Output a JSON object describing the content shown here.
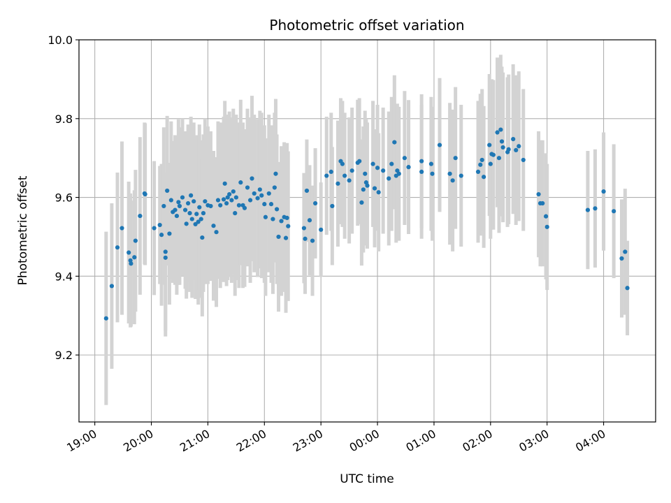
{
  "chart_data": {
    "type": "scatter",
    "title": "Photometric offset variation",
    "xlabel": "UTC time",
    "ylabel": "Photometric offset",
    "x_unit": "hours",
    "xlim": [
      -0.28,
      9.92
    ],
    "ylim": [
      9.03,
      10.0
    ],
    "x_ticks": [
      0,
      1,
      2,
      3,
      4,
      5,
      6,
      7,
      8,
      9
    ],
    "x_tick_labels": [
      "19:00",
      "20:00",
      "21:00",
      "22:00",
      "23:00",
      "00:00",
      "01:00",
      "02:00",
      "03:00",
      "04:00"
    ],
    "y_ticks": [
      9.2,
      9.4,
      9.6,
      9.8,
      10.0
    ],
    "y_tick_labels": [
      "9.2",
      "9.4",
      "9.6",
      "9.8",
      "10.0"
    ],
    "grid": true,
    "colors": {
      "points": "#1f77b4",
      "errorbars": "#d3d3d3",
      "grid": "#b0b0b0"
    },
    "series": [
      {
        "points": [
          {
            "x": 0.2,
            "y": 9.293,
            "err": 0.22
          },
          {
            "x": 0.3,
            "y": 9.375,
            "err": 0.21
          },
          {
            "x": 0.4,
            "y": 9.473,
            "err": 0.19
          },
          {
            "x": 0.48,
            "y": 9.522,
            "err": 0.22
          },
          {
            "x": 0.6,
            "y": 9.46,
            "err": 0.18
          },
          {
            "x": 0.63,
            "y": 9.44,
            "err": 0.17
          },
          {
            "x": 0.64,
            "y": 9.432,
            "err": 0.16
          },
          {
            "x": 0.7,
            "y": 9.448,
            "err": 0.17
          },
          {
            "x": 0.72,
            "y": 9.49,
            "err": 0.18
          },
          {
            "x": 0.8,
            "y": 9.553,
            "err": 0.2
          },
          {
            "x": 0.88,
            "y": 9.61,
            "err": 0.18
          },
          {
            "x": 0.89,
            "y": 9.608,
            "err": 0.18
          },
          {
            "x": 1.05,
            "y": 9.522,
            "err": 0.17
          },
          {
            "x": 1.15,
            "y": 9.53,
            "err": 0.15
          },
          {
            "x": 1.18,
            "y": 9.505,
            "err": 0.18
          },
          {
            "x": 1.22,
            "y": 9.578,
            "err": 0.2
          },
          {
            "x": 1.25,
            "y": 9.462,
            "err": 0.2
          },
          {
            "x": 1.25,
            "y": 9.447,
            "err": 0.2
          },
          {
            "x": 1.28,
            "y": 9.617,
            "err": 0.19
          },
          {
            "x": 1.32,
            "y": 9.508,
            "err": 0.18
          },
          {
            "x": 1.35,
            "y": 9.593,
            "err": 0.2
          },
          {
            "x": 1.38,
            "y": 9.563,
            "err": 0.18
          },
          {
            "x": 1.42,
            "y": 9.568,
            "err": 0.19
          },
          {
            "x": 1.45,
            "y": 9.553,
            "err": 0.2
          },
          {
            "x": 1.48,
            "y": 9.588,
            "err": 0.21
          },
          {
            "x": 1.5,
            "y": 9.578,
            "err": 0.2
          },
          {
            "x": 1.55,
            "y": 9.6,
            "err": 0.2
          },
          {
            "x": 1.6,
            "y": 9.568,
            "err": 0.2
          },
          {
            "x": 1.62,
            "y": 9.533,
            "err": 0.19
          },
          {
            "x": 1.65,
            "y": 9.585,
            "err": 0.2
          },
          {
            "x": 1.68,
            "y": 9.56,
            "err": 0.2
          },
          {
            "x": 1.7,
            "y": 9.605,
            "err": 0.2
          },
          {
            "x": 1.72,
            "y": 9.545,
            "err": 0.2
          },
          {
            "x": 1.75,
            "y": 9.59,
            "err": 0.2
          },
          {
            "x": 1.78,
            "y": 9.532,
            "err": 0.19
          },
          {
            "x": 1.8,
            "y": 9.558,
            "err": 0.2
          },
          {
            "x": 1.83,
            "y": 9.538,
            "err": 0.21
          },
          {
            "x": 1.85,
            "y": 9.575,
            "err": 0.21
          },
          {
            "x": 1.88,
            "y": 9.545,
            "err": 0.2
          },
          {
            "x": 1.9,
            "y": 9.498,
            "err": 0.2
          },
          {
            "x": 1.92,
            "y": 9.56,
            "err": 0.2
          },
          {
            "x": 1.95,
            "y": 9.59,
            "err": 0.21
          },
          {
            "x": 2.0,
            "y": 9.58,
            "err": 0.2
          },
          {
            "x": 2.05,
            "y": 9.578,
            "err": 0.19
          },
          {
            "x": 2.1,
            "y": 9.528,
            "err": 0.19
          },
          {
            "x": 2.15,
            "y": 9.512,
            "err": 0.19
          },
          {
            "x": 2.18,
            "y": 9.593,
            "err": 0.2
          },
          {
            "x": 2.22,
            "y": 9.58,
            "err": 0.21
          },
          {
            "x": 2.28,
            "y": 9.595,
            "err": 0.21
          },
          {
            "x": 2.3,
            "y": 9.635,
            "err": 0.21
          },
          {
            "x": 2.33,
            "y": 9.585,
            "err": 0.21
          },
          {
            "x": 2.35,
            "y": 9.6,
            "err": 0.21
          },
          {
            "x": 2.38,
            "y": 9.608,
            "err": 0.21
          },
          {
            "x": 2.42,
            "y": 9.593,
            "err": 0.21
          },
          {
            "x": 2.45,
            "y": 9.615,
            "err": 0.21
          },
          {
            "x": 2.48,
            "y": 9.56,
            "err": 0.21
          },
          {
            "x": 2.5,
            "y": 9.6,
            "err": 0.21
          },
          {
            "x": 2.55,
            "y": 9.58,
            "err": 0.21
          },
          {
            "x": 2.58,
            "y": 9.638,
            "err": 0.21
          },
          {
            "x": 2.62,
            "y": 9.58,
            "err": 0.21
          },
          {
            "x": 2.65,
            "y": 9.573,
            "err": 0.2
          },
          {
            "x": 2.7,
            "y": 9.625,
            "err": 0.2
          },
          {
            "x": 2.75,
            "y": 9.593,
            "err": 0.21
          },
          {
            "x": 2.78,
            "y": 9.648,
            "err": 0.21
          },
          {
            "x": 2.82,
            "y": 9.61,
            "err": 0.2
          },
          {
            "x": 2.88,
            "y": 9.598,
            "err": 0.2
          },
          {
            "x": 2.92,
            "y": 9.62,
            "err": 0.2
          },
          {
            "x": 2.95,
            "y": 9.605,
            "err": 0.21
          },
          {
            "x": 3.0,
            "y": 9.583,
            "err": 0.2
          },
          {
            "x": 3.02,
            "y": 9.55,
            "err": 0.2
          },
          {
            "x": 3.08,
            "y": 9.61,
            "err": 0.2
          },
          {
            "x": 3.12,
            "y": 9.583,
            "err": 0.2
          },
          {
            "x": 3.15,
            "y": 9.545,
            "err": 0.19
          },
          {
            "x": 3.18,
            "y": 9.625,
            "err": 0.19
          },
          {
            "x": 3.2,
            "y": 9.66,
            "err": 0.19
          },
          {
            "x": 3.22,
            "y": 9.57,
            "err": 0.19
          },
          {
            "x": 3.25,
            "y": 9.5,
            "err": 0.19
          },
          {
            "x": 3.3,
            "y": 9.54,
            "err": 0.19
          },
          {
            "x": 3.35,
            "y": 9.55,
            "err": 0.19
          },
          {
            "x": 3.38,
            "y": 9.497,
            "err": 0.19
          },
          {
            "x": 3.4,
            "y": 9.548,
            "err": 0.19
          },
          {
            "x": 3.42,
            "y": 9.527,
            "err": 0.19
          },
          {
            "x": 3.7,
            "y": 9.522,
            "err": 0.14
          },
          {
            "x": 3.72,
            "y": 9.495,
            "err": 0.14
          },
          {
            "x": 3.75,
            "y": 9.617,
            "err": 0.13
          },
          {
            "x": 3.8,
            "y": 9.542,
            "err": 0.14
          },
          {
            "x": 3.85,
            "y": 9.49,
            "err": 0.14
          },
          {
            "x": 3.9,
            "y": 9.585,
            "err": 0.14
          },
          {
            "x": 4.0,
            "y": 9.518,
            "err": 0.12
          },
          {
            "x": 4.1,
            "y": 9.655,
            "err": 0.15
          },
          {
            "x": 4.18,
            "y": 9.665,
            "err": 0.15
          },
          {
            "x": 4.2,
            "y": 9.578,
            "err": 0.15
          },
          {
            "x": 4.3,
            "y": 9.635,
            "err": 0.16
          },
          {
            "x": 4.35,
            "y": 9.692,
            "err": 0.16
          },
          {
            "x": 4.38,
            "y": 9.685,
            "err": 0.16
          },
          {
            "x": 4.42,
            "y": 9.655,
            "err": 0.16
          },
          {
            "x": 4.5,
            "y": 9.643,
            "err": 0.16
          },
          {
            "x": 4.55,
            "y": 9.668,
            "err": 0.16
          },
          {
            "x": 4.65,
            "y": 9.688,
            "err": 0.16
          },
          {
            "x": 4.68,
            "y": 9.692,
            "err": 0.16
          },
          {
            "x": 4.72,
            "y": 9.587,
            "err": 0.16
          },
          {
            "x": 4.75,
            "y": 9.62,
            "err": 0.16
          },
          {
            "x": 4.78,
            "y": 9.66,
            "err": 0.16
          },
          {
            "x": 4.8,
            "y": 9.638,
            "err": 0.16
          },
          {
            "x": 4.82,
            "y": 9.63,
            "err": 0.16
          },
          {
            "x": 4.92,
            "y": 9.685,
            "err": 0.16
          },
          {
            "x": 4.95,
            "y": 9.623,
            "err": 0.15
          },
          {
            "x": 5.0,
            "y": 9.675,
            "err": 0.16
          },
          {
            "x": 5.02,
            "y": 9.613,
            "err": 0.15
          },
          {
            "x": 5.1,
            "y": 9.668,
            "err": 0.16
          },
          {
            "x": 5.2,
            "y": 9.648,
            "err": 0.17
          },
          {
            "x": 5.25,
            "y": 9.685,
            "err": 0.17
          },
          {
            "x": 5.3,
            "y": 9.74,
            "err": 0.17
          },
          {
            "x": 5.33,
            "y": 9.655,
            "err": 0.17
          },
          {
            "x": 5.35,
            "y": 9.668,
            "err": 0.17
          },
          {
            "x": 5.38,
            "y": 9.66,
            "err": 0.17
          },
          {
            "x": 5.48,
            "y": 9.7,
            "err": 0.17
          },
          {
            "x": 5.55,
            "y": 9.677,
            "err": 0.17
          },
          {
            "x": 5.78,
            "y": 9.692,
            "err": 0.17
          },
          {
            "x": 5.78,
            "y": 9.665,
            "err": 0.17
          },
          {
            "x": 5.95,
            "y": 9.685,
            "err": 0.17
          },
          {
            "x": 5.97,
            "y": 9.66,
            "err": 0.17
          },
          {
            "x": 6.1,
            "y": 9.733,
            "err": 0.17
          },
          {
            "x": 6.28,
            "y": 9.66,
            "err": 0.18
          },
          {
            "x": 6.33,
            "y": 9.643,
            "err": 0.18
          },
          {
            "x": 6.38,
            "y": 9.7,
            "err": 0.18
          },
          {
            "x": 6.48,
            "y": 9.655,
            "err": 0.18
          },
          {
            "x": 6.78,
            "y": 9.665,
            "err": 0.18
          },
          {
            "x": 6.82,
            "y": 9.683,
            "err": 0.18
          },
          {
            "x": 6.85,
            "y": 9.695,
            "err": 0.18
          },
          {
            "x": 6.88,
            "y": 9.652,
            "err": 0.18
          },
          {
            "x": 6.98,
            "y": 9.733,
            "err": 0.18
          },
          {
            "x": 7.0,
            "y": 9.685,
            "err": 0.19
          },
          {
            "x": 7.02,
            "y": 9.71,
            "err": 0.19
          },
          {
            "x": 7.05,
            "y": 9.708,
            "err": 0.19
          },
          {
            "x": 7.12,
            "y": 9.765,
            "err": 0.19
          },
          {
            "x": 7.15,
            "y": 9.7,
            "err": 0.19
          },
          {
            "x": 7.18,
            "y": 9.772,
            "err": 0.19
          },
          {
            "x": 7.2,
            "y": 9.742,
            "err": 0.19
          },
          {
            "x": 7.22,
            "y": 9.727,
            "err": 0.19
          },
          {
            "x": 7.3,
            "y": 9.715,
            "err": 0.19
          },
          {
            "x": 7.32,
            "y": 9.722,
            "err": 0.19
          },
          {
            "x": 7.4,
            "y": 9.748,
            "err": 0.19
          },
          {
            "x": 7.45,
            "y": 9.72,
            "err": 0.19
          },
          {
            "x": 7.5,
            "y": 9.73,
            "err": 0.19
          },
          {
            "x": 7.58,
            "y": 9.695,
            "err": 0.18
          },
          {
            "x": 7.85,
            "y": 9.608,
            "err": 0.16
          },
          {
            "x": 7.88,
            "y": 9.585,
            "err": 0.16
          },
          {
            "x": 7.92,
            "y": 9.585,
            "err": 0.16
          },
          {
            "x": 7.98,
            "y": 9.552,
            "err": 0.16
          },
          {
            "x": 8.0,
            "y": 9.525,
            "err": 0.16
          },
          {
            "x": 8.72,
            "y": 9.568,
            "err": 0.15
          },
          {
            "x": 8.85,
            "y": 9.572,
            "err": 0.15
          },
          {
            "x": 9.0,
            "y": 9.615,
            "err": 0.15
          },
          {
            "x": 9.18,
            "y": 9.565,
            "err": 0.17
          },
          {
            "x": 9.32,
            "y": 9.445,
            "err": 0.15
          },
          {
            "x": 9.38,
            "y": 9.462,
            "err": 0.16
          },
          {
            "x": 9.42,
            "y": 9.37,
            "err": 0.12
          }
        ]
      }
    ]
  }
}
